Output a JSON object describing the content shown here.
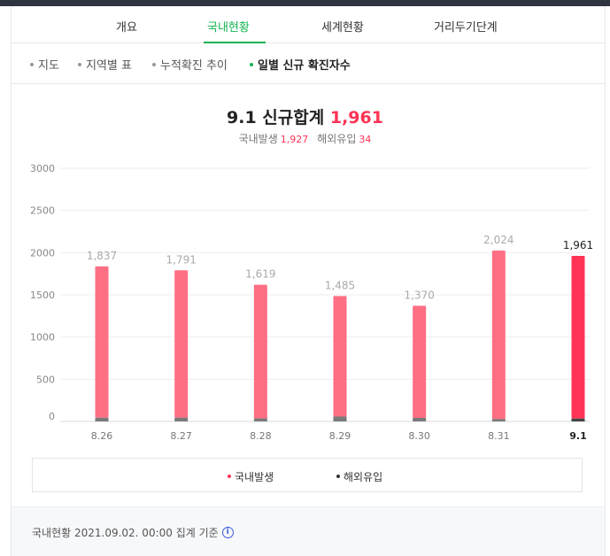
{
  "tabs": [
    {
      "label": "개요",
      "active": false
    },
    {
      "label": "국내현황",
      "active": true
    },
    {
      "label": "세계현황",
      "active": false
    },
    {
      "label": "거리두기단계",
      "active": false
    }
  ],
  "subtabs": [
    {
      "label": "지도",
      "active": false
    },
    {
      "label": "지역별 표",
      "active": false
    },
    {
      "label": "누적확진 추이",
      "active": false
    },
    {
      "label": "일별 신규 확진자수",
      "active": true
    }
  ],
  "summary": {
    "title_prefix": "9.1 신규합계",
    "total": "1,961",
    "domestic_label": "국내발생",
    "domestic_value": "1,927",
    "overseas_label": "해외유입",
    "overseas_value": "34"
  },
  "chart_data": {
    "type": "bar",
    "stacked": true,
    "categories": [
      "8.26",
      "8.27",
      "8.28",
      "8.29",
      "8.30",
      "8.31",
      "9.1"
    ],
    "highlight_category": "9.1",
    "totals": [
      1837,
      1791,
      1619,
      1485,
      1370,
      2024,
      1961
    ],
    "total_labels": [
      "1,837",
      "1,791",
      "1,619",
      "1,485",
      "1,370",
      "2,024",
      "1,961"
    ],
    "series": [
      {
        "name": "국내발생",
        "values": [
          1793,
          1746,
          1583,
          1427,
          1328,
          1996,
          1927
        ],
        "color": "#ff6f84",
        "highlight_color": "#ff3355"
      },
      {
        "name": "해외유입",
        "values": [
          44,
          45,
          36,
          58,
          42,
          28,
          34
        ],
        "color": "#7a7a7a",
        "highlight_color": "#444444"
      }
    ],
    "yticks": [
      0,
      500,
      1000,
      1500,
      2000,
      2500,
      3000
    ],
    "ylim": [
      0,
      3000
    ],
    "grid": true,
    "legend_position": "bottom"
  },
  "legend": [
    {
      "label": "국내발생",
      "color": "#ff3355"
    },
    {
      "label": "해외유입",
      "color": "#333333"
    }
  ],
  "footer": {
    "text": "국내현황 2021.09.02. 00:00 집계 기준",
    "info_icon": "i"
  },
  "colors": {
    "accent": "#14b352",
    "highlight": "#ff3355",
    "topbar": "#2f3441"
  }
}
